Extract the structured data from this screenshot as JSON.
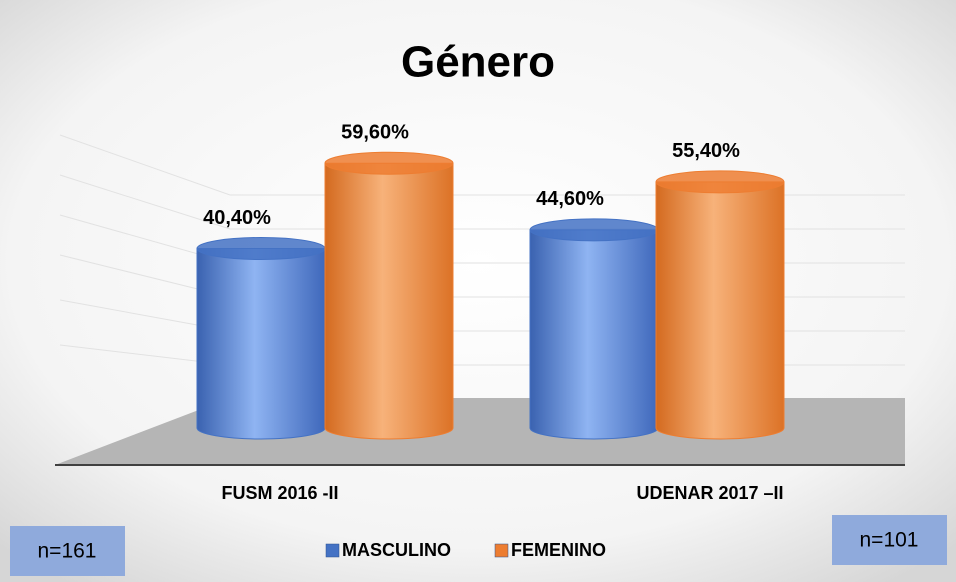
{
  "chart_data": {
    "type": "bar3d",
    "title": "Género",
    "categories": [
      "FUSM 2016 -II",
      "UDENAR 2017 –II"
    ],
    "series": [
      {
        "name": "MASCULINO",
        "color": "#4472c4",
        "values": [
          40.4,
          44.6
        ],
        "value_labels": [
          "40,40%",
          "44,60%"
        ]
      },
      {
        "name": "FEMENINO",
        "color": "#ed7d31",
        "values": [
          59.6,
          55.4
        ],
        "value_labels": [
          "59,60%",
          "55,40%"
        ]
      }
    ],
    "ylim": [
      0,
      70
    ],
    "annotations": [
      "n=161",
      "n=101"
    ],
    "legend": "bottom"
  }
}
